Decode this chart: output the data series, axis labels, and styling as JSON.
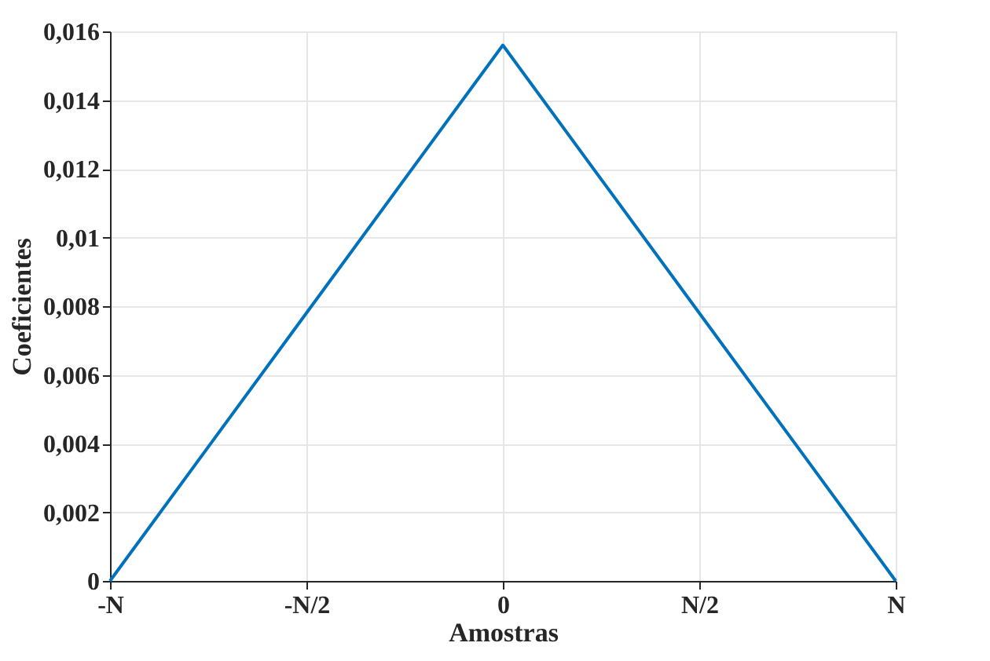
{
  "chart_data": {
    "type": "line",
    "xlabel": "Amostras",
    "ylabel": "Coeficientes",
    "categories": [
      "-N",
      "-N/2",
      "0",
      "N/2",
      "N"
    ],
    "series": [
      {
        "color": "#0072bd",
        "values": [
          0,
          0.0078,
          0.0156,
          0.0078,
          0
        ]
      }
    ],
    "ylim": [
      0,
      0.016
    ],
    "yticks": [
      0,
      {
        "value": 0.002,
        "label": "0,002"
      },
      {
        "value": 0.004,
        "label": "0,004"
      },
      {
        "value": 0.006,
        "label": "0,006"
      },
      {
        "value": 0.008,
        "label": "0,008"
      },
      {
        "value": 0.01,
        "label": "0,01"
      },
      {
        "value": 0.012,
        "label": "0,012"
      },
      {
        "value": 0.014,
        "label": "0,014"
      },
      {
        "value": 0.016,
        "label": "0,016"
      }
    ],
    "grid": true,
    "marker": "none",
    "line_style": "solid"
  }
}
